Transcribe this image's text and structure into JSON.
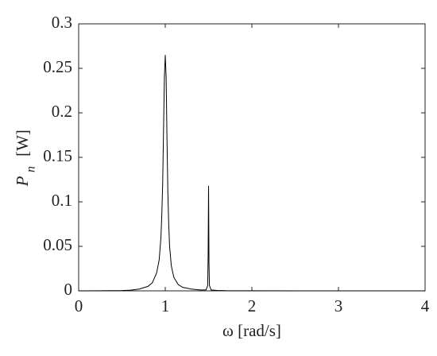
{
  "chart_data": {
    "type": "line",
    "x_label": "ω [rad/s]",
    "y_label": "P",
    "y_label_subscript": "n",
    "y_label_unit": "[W]",
    "x": [
      0,
      0.5,
      0.6,
      0.7,
      0.8,
      0.85,
      0.9,
      0.93,
      0.95,
      0.96,
      0.97,
      0.98,
      0.99,
      1.0,
      1.01,
      1.02,
      1.03,
      1.04,
      1.05,
      1.07,
      1.1,
      1.15,
      1.2,
      1.3,
      1.4,
      1.47,
      1.49,
      1.495,
      1.5,
      1.505,
      1.51,
      1.53,
      1.6,
      1.7,
      2,
      3,
      4
    ],
    "series": [
      {
        "color": "#000000",
        "values": [
          0,
          0.0003,
          0.0008,
          0.002,
          0.005,
          0.009,
          0.02,
          0.035,
          0.06,
          0.085,
          0.12,
          0.18,
          0.24,
          0.265,
          0.24,
          0.17,
          0.11,
          0.075,
          0.05,
          0.028,
          0.015,
          0.007,
          0.004,
          0.002,
          0.001,
          0.001,
          0.006,
          0.04,
          0.118,
          0.03,
          0.006,
          0.001,
          0.0005,
          0.0002,
          0.0001,
          0,
          0
        ]
      }
    ],
    "xlim": [
      0,
      4
    ],
    "xticks": [
      0,
      1,
      2,
      3,
      4
    ],
    "ylim": [
      0,
      0.3
    ],
    "yticks": [
      0,
      0.05,
      0.1,
      0.15,
      0.2,
      0.25,
      0.3
    ]
  }
}
